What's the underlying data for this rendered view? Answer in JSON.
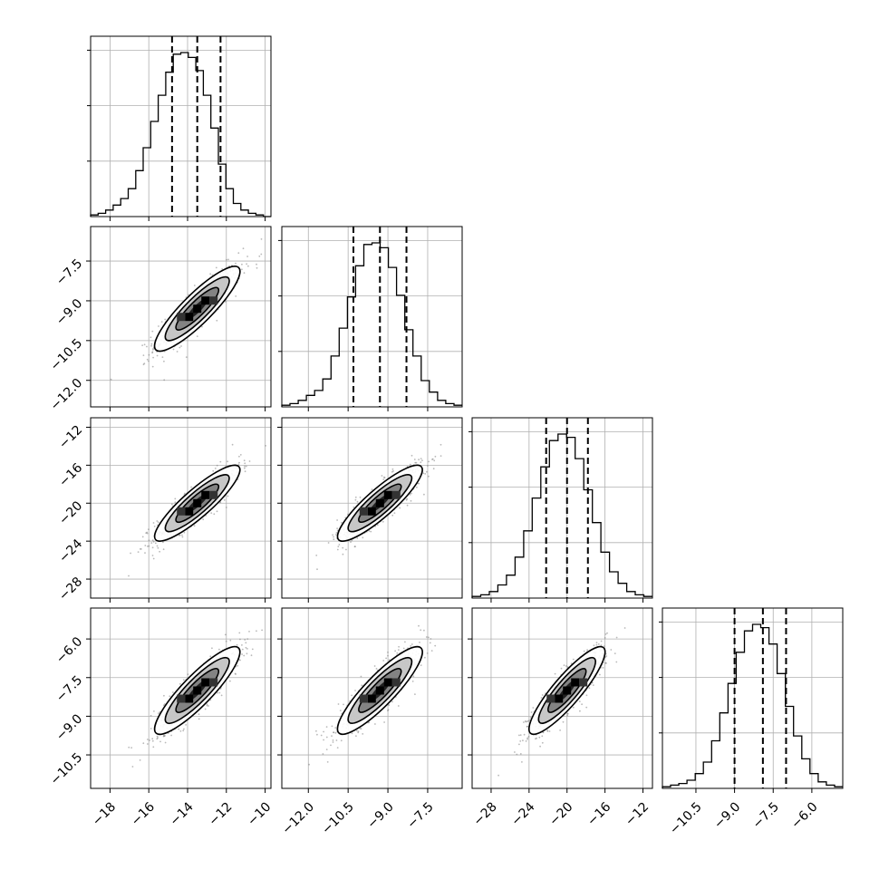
{
  "chart_data": {
    "type": "corner",
    "grid": true,
    "parameters": [
      {
        "range": [
          -19,
          -9.7
        ],
        "ticks": [
          -18,
          -16,
          -14,
          -12,
          -10
        ],
        "tick_labels": [
          "−18",
          "−16",
          "−14",
          "−12",
          "−10"
        ],
        "mean": -13.5,
        "sigma": 1.1,
        "quantiles": [
          -14.8,
          -13.5,
          -12.3
        ],
        "hist_counts": [
          1,
          2,
          4,
          7,
          11,
          17,
          28,
          42,
          58,
          74,
          88,
          99,
          100,
          97,
          89,
          74,
          54,
          32,
          17,
          8,
          4,
          2,
          1,
          0
        ]
      },
      {
        "range": [
          -13.0,
          -6.2
        ],
        "ticks": [
          -12.0,
          -10.5,
          -9.0,
          -7.5
        ],
        "tick_labels": [
          "−12.0",
          "−10.5",
          "−9.0",
          "−7.5"
        ],
        "mean": -9.3,
        "sigma": 0.8,
        "quantiles": [
          -10.3,
          -9.3,
          -8.3
        ],
        "hist_counts": [
          1,
          2,
          4,
          7,
          10,
          17,
          31,
          48,
          67,
          86,
          99,
          100,
          97,
          85,
          68,
          47,
          31,
          16,
          9,
          4,
          2,
          1
        ]
      },
      {
        "range": [
          -30,
          -11
        ],
        "ticks": [
          -28,
          -24,
          -20,
          -16,
          -12
        ],
        "tick_labels": [
          "−28",
          "−24",
          "−20",
          "−16",
          "−12"
        ],
        "mean": -20.0,
        "sigma": 2.0,
        "quantiles": [
          -22.2,
          -20.0,
          -17.8
        ],
        "hist_counts": [
          1,
          2,
          4,
          8,
          14,
          25,
          41,
          61,
          80,
          96,
          100,
          98,
          85,
          66,
          46,
          28,
          16,
          9,
          4,
          2,
          1
        ]
      },
      {
        "range": [
          -11.8,
          -4.8
        ],
        "ticks": [
          -10.5,
          -9.0,
          -7.5,
          -6.0
        ],
        "tick_labels": [
          "−10.5",
          "−9.0",
          "−7.5",
          "−6.0"
        ],
        "mean": -8.0,
        "sigma": 0.85,
        "quantiles": [
          -9.0,
          -7.9,
          -7.0
        ],
        "hist_counts": [
          1,
          2,
          3,
          5,
          9,
          16,
          29,
          46,
          64,
          83,
          96,
          100,
          98,
          88,
          70,
          50,
          32,
          18,
          9,
          4,
          2,
          1
        ]
      }
    ],
    "row_tick_labels": {
      "1": [
        "−7.5",
        "−9.0",
        "−10.5",
        "−12.0"
      ],
      "2": [
        "−12",
        "−16",
        "−20",
        "−24",
        "−28"
      ],
      "3": [
        "−6.0",
        "−7.5",
        "−9.0",
        "−10.5"
      ]
    },
    "correlation": 0.88,
    "levels": [
      "0.5 sigma",
      "1 sigma",
      "1.5 sigma",
      "2 sigma"
    ],
    "colors": {
      "line": "#000000",
      "points": "#808080",
      "grid": "#b0b0b0",
      "fill_dark": "#111111",
      "fill_mid": "#777777",
      "fill_light": "#bdbdbd"
    }
  }
}
